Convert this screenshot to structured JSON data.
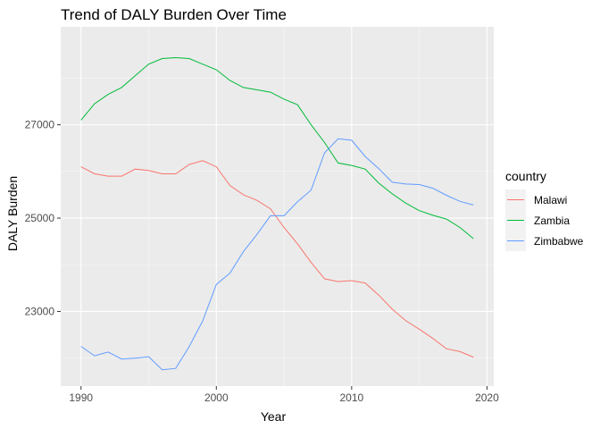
{
  "chart_data": {
    "type": "line",
    "title": "Trend of DALY Burden Over Time",
    "xlabel": "Year",
    "ylabel": "DALY Burden",
    "xlim": [
      1988.5,
      2020.5
    ],
    "ylim": [
      21400,
      29100
    ],
    "x_ticks": [
      1990,
      2000,
      2010,
      2020
    ],
    "x_tick_labels": [
      "1990",
      "2000",
      "2010",
      "2020"
    ],
    "y_ticks": [
      23000,
      25000,
      27000
    ],
    "y_tick_labels": [
      "23000",
      "25000",
      "27000"
    ],
    "x_minor_ticks": [
      1995,
      2005,
      2015
    ],
    "y_minor_ticks": [
      22000,
      24000,
      26000,
      28000
    ],
    "grid": true,
    "legend": {
      "title": "country",
      "position": "right"
    },
    "x": [
      1990,
      1991,
      1992,
      1993,
      1994,
      1995,
      1996,
      1997,
      1998,
      1999,
      2000,
      2001,
      2002,
      2003,
      2004,
      2005,
      2006,
      2007,
      2008,
      2009,
      2010,
      2011,
      2012,
      2013,
      2014,
      2015,
      2016,
      2017,
      2018,
      2019
    ],
    "series": [
      {
        "name": "Malawi",
        "color": "#F8766D",
        "values": [
          26100,
          25950,
          25900,
          25900,
          26050,
          26020,
          25950,
          25950,
          26150,
          26230,
          26100,
          25700,
          25500,
          25380,
          25200,
          24800,
          24450,
          24050,
          23700,
          23640,
          23660,
          23610,
          23350,
          23050,
          22800,
          22620,
          22420,
          22200,
          22140,
          22020
        ]
      },
      {
        "name": "Zambia",
        "color": "#00BA38",
        "values": [
          27100,
          27450,
          27650,
          27800,
          28050,
          28300,
          28420,
          28440,
          28420,
          28300,
          28180,
          27950,
          27800,
          27750,
          27700,
          27550,
          27430,
          27000,
          26620,
          26180,
          26130,
          26050,
          25750,
          25520,
          25320,
          25160,
          25060,
          24980,
          24800,
          24560
        ]
      },
      {
        "name": "Zimbabwe",
        "color": "#619CFF",
        "values": [
          22250,
          22050,
          22130,
          21980,
          22000,
          22030,
          21750,
          21780,
          22250,
          22800,
          23580,
          23820,
          24280,
          24650,
          25050,
          25050,
          25350,
          25600,
          26400,
          26700,
          26670,
          26320,
          26060,
          25770,
          25730,
          25720,
          25640,
          25490,
          25360,
          25280
        ]
      }
    ]
  }
}
